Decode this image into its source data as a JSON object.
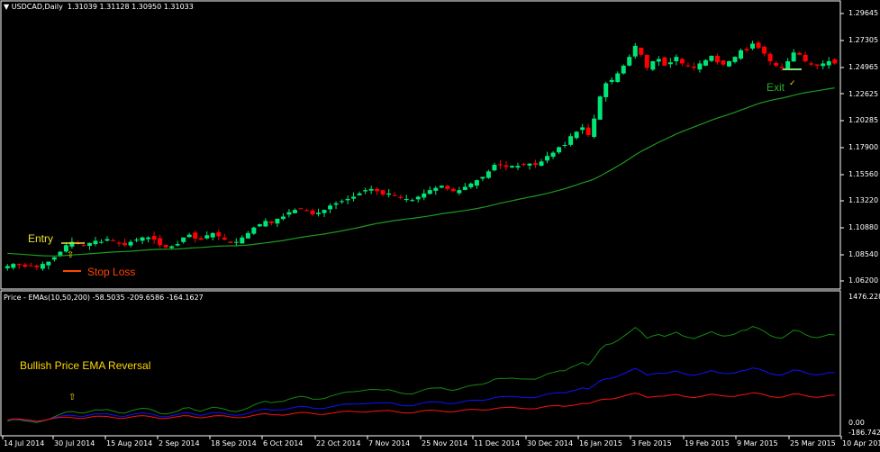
{
  "header": {
    "symbol_label": "USDCAD,Daily",
    "ohlc": "1.31039 1.31128 1.30950 1.31033",
    "triangle": "▼"
  },
  "indicator": {
    "label": "Price - EMAs(10,50,200) -58.5035 -209.6586 -164.1627"
  },
  "annotations": {
    "entry": "Entry",
    "stop_loss": "Stop Loss",
    "exit": "Exit",
    "exit_check": "✓",
    "up_arrow": "⇧",
    "pattern": "Bullish Price EMA Reversal"
  },
  "colors": {
    "background": "#000000",
    "bull": "#00e676",
    "bear": "#ff0000",
    "ema": "#1f9a1f",
    "green_line": "#138a13",
    "blue_line": "#1010ff",
    "red_line": "#ff1010",
    "yellow": "#ffd700",
    "stop_loss": "#ff4500",
    "exit_text": "#27ae27",
    "frame": "#ffffff"
  },
  "price_axis": [
    "1.29645",
    "1.27305",
    "1.24965",
    "1.22625",
    "1.20285",
    "1.17900",
    "1.15560",
    "1.13220",
    "1.10880",
    "1.08540",
    "1.06200"
  ],
  "indicator_axis": {
    "top": "1476.2280",
    "zero": "0.00",
    "bottom": "-186.7421"
  },
  "time_axis": [
    "14 Jul 2014",
    "30 Jul 2014",
    "15 Aug 2014",
    "2 Sep 2014",
    "18 Sep 2014",
    "6 Oct 2014",
    "22 Oct 2014",
    "7 Nov 2014",
    "25 Nov 2014",
    "11 Dec 2014",
    "30 Dec 2014",
    "16 Jan 2015",
    "3 Feb 2015",
    "19 Feb 2015",
    "9 Mar 2015",
    "25 Mar 2015",
    "10 Apr 2015"
  ],
  "chart_data": [
    {
      "type": "candlestick",
      "title": "USDCAD,Daily",
      "ylabel": "Price",
      "ylim": [
        1.05,
        1.31
      ],
      "x_ticks": [
        "14 Jul 2014",
        "30 Jul 2014",
        "15 Aug 2014",
        "2 Sep 2014",
        "18 Sep 2014",
        "6 Oct 2014",
        "22 Oct 2014",
        "7 Nov 2014",
        "25 Nov 2014",
        "11 Dec 2014",
        "30 Dec 2014",
        "16 Jan 2015",
        "3 Feb 2015",
        "19 Feb 2015",
        "9 Mar 2015",
        "25 Mar 2015",
        "10 Apr 2015"
      ],
      "close_path": [
        1.07,
        1.072,
        1.071,
        1.0695,
        1.0705,
        1.069,
        1.072,
        1.074,
        1.078,
        1.083,
        1.089,
        1.092,
        1.0905,
        1.089,
        1.091,
        1.093,
        1.092,
        1.0945,
        1.093,
        1.0905,
        1.089,
        1.092,
        1.094,
        1.096,
        1.096,
        1.094,
        1.089,
        1.087,
        1.088,
        1.09,
        1.096,
        1.0985,
        1.095,
        1.094,
        1.098,
        1.1,
        1.097,
        1.094,
        1.091,
        1.092,
        1.096,
        1.1,
        1.105,
        1.108,
        1.111,
        1.109,
        1.113,
        1.115,
        1.119,
        1.121,
        1.122,
        1.12,
        1.117,
        1.1185,
        1.121,
        1.125,
        1.127,
        1.129,
        1.131,
        1.133,
        1.136,
        1.139,
        1.14,
        1.138,
        1.135,
        1.136,
        1.134,
        1.132,
        1.131,
        1.13,
        1.133,
        1.136,
        1.139,
        1.141,
        1.143,
        1.14,
        1.138,
        1.139,
        1.142,
        1.145,
        1.148,
        1.151,
        1.156,
        1.162,
        1.162,
        1.16,
        1.161,
        1.161,
        1.162,
        1.163,
        1.162,
        1.165,
        1.17,
        1.173,
        1.178,
        1.18,
        1.188,
        1.192,
        1.196,
        1.189,
        1.204,
        1.224,
        1.236,
        1.239,
        1.245,
        1.252,
        1.26,
        1.27,
        1.262,
        1.25,
        1.256,
        1.258,
        1.252,
        1.255,
        1.26,
        1.254,
        1.252,
        1.25,
        1.254,
        1.257,
        1.261,
        1.255,
        1.253,
        1.256,
        1.26,
        1.266,
        1.266,
        1.272,
        1.268,
        1.263,
        1.256,
        1.252,
        1.25,
        1.256,
        1.264,
        1.262,
        1.256,
        1.253,
        1.252,
        1.254,
        1.256,
        1.254
      ],
      "ema_line": {
        "name": "EMA",
        "start": 1.082,
        "end": 1.254
      },
      "annotations": [
        {
          "text": "Entry",
          "date_index": 20,
          "price": 1.0935
        },
        {
          "text": "Stop Loss",
          "price": 1.0835
        },
        {
          "text": "Exit",
          "date_index": 125,
          "price": 1.249
        }
      ]
    },
    {
      "type": "line",
      "title": "Price - EMAs(10,50,200)",
      "ylim": [
        -186.7421,
        1476.228
      ],
      "series": [
        {
          "name": "Price-EMA10",
          "color": "green",
          "last": -58.5035
        },
        {
          "name": "Price-EMA50",
          "color": "blue",
          "last": -209.6586
        },
        {
          "name": "Price-EMA200",
          "color": "red",
          "last": -164.1627
        }
      ],
      "peak_value_approx": 1476.228,
      "annotation": "Bullish Price EMA Reversal"
    }
  ]
}
